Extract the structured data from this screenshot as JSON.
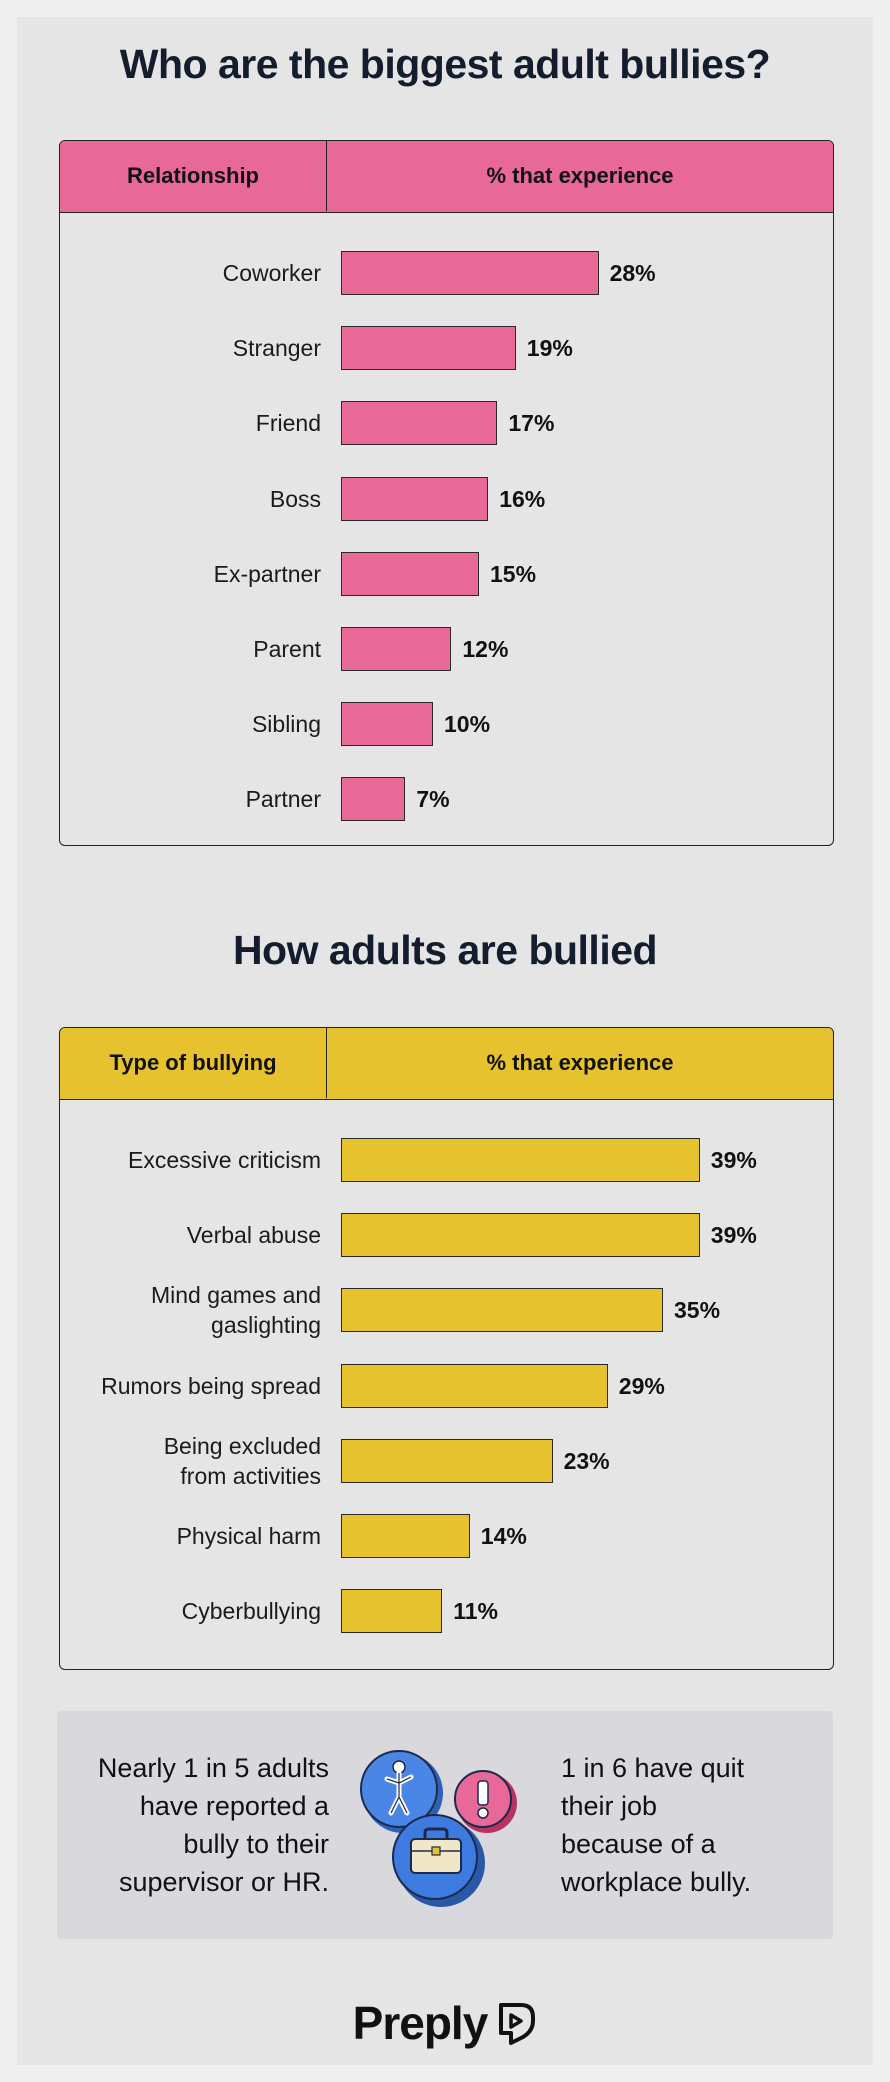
{
  "colors": {
    "pink": "#e86898",
    "yellow": "#e6c32e",
    "blue": "#3d7be0",
    "dark": "#141d2e"
  },
  "section1": {
    "title": "Who are the biggest adult bullies?",
    "header_left": "Relationship",
    "header_right": "% that experience"
  },
  "section2": {
    "title": "How adults are bullied",
    "header_left": "Type of bullying",
    "header_right": "% that experience"
  },
  "chart_data": [
    {
      "type": "bar",
      "orientation": "horizontal",
      "title": "Who are the biggest adult bullies?",
      "categories": [
        "Coworker",
        "Stranger",
        "Friend",
        "Boss",
        "Ex-partner",
        "Parent",
        "Sibling",
        "Partner"
      ],
      "values": [
        28,
        19,
        17,
        16,
        15,
        12,
        10,
        7
      ],
      "value_labels": [
        "28%",
        "19%",
        "17%",
        "16%",
        "15%",
        "12%",
        "10%",
        "7%"
      ],
      "xlabel": "% that experience",
      "ylabel": "Relationship",
      "xlim": [
        0,
        40
      ],
      "color": "#e86898"
    },
    {
      "type": "bar",
      "orientation": "horizontal",
      "title": "How adults are bullied",
      "categories": [
        "Excessive criticism",
        "Verbal abuse",
        "Mind games and\ngaslighting",
        "Rumors being spread",
        "Being excluded\nfrom activities",
        "Physical harm",
        "Cyberbullying"
      ],
      "values": [
        39,
        39,
        35,
        29,
        23,
        14,
        11
      ],
      "value_labels": [
        "39%",
        "39%",
        "35%",
        "29%",
        "23%",
        "14%",
        "11%"
      ],
      "xlabel": "% that experience",
      "ylabel": "Type of bullying",
      "xlim": [
        0,
        40
      ],
      "color": "#e6c32e"
    }
  ],
  "callout": {
    "left_text": "Nearly 1 in 5 adults\nhave reported a\nbully to their\nsupervisor or HR.",
    "right_text": "1 in 6 have quit\ntheir job\nbecause of a\nworkplace bully.",
    "icons": [
      "person-icon",
      "briefcase-icon",
      "exclamation-icon"
    ]
  },
  "brand": {
    "name": "Preply"
  }
}
